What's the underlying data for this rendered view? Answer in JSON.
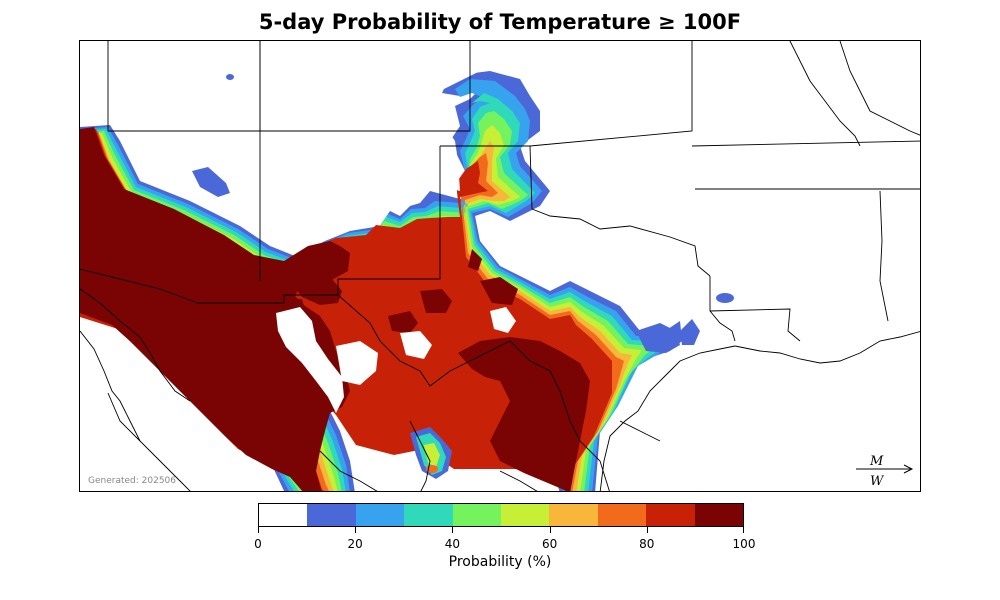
{
  "title": "5-day Probability of Temperature ≥ 100F",
  "generated_text": "Generated: 202506",
  "colorbar": {
    "label": "Probability (%)",
    "ticks": [
      "0",
      "20",
      "40",
      "60",
      "80",
      "100"
    ],
    "bins": [
      {
        "range": "0-10",
        "color": "#ffffff"
      },
      {
        "range": "10-20",
        "color": "#4a68d8"
      },
      {
        "range": "20-30",
        "color": "#37a3ee"
      },
      {
        "range": "30-40",
        "color": "#2fd9b9"
      },
      {
        "range": "40-50",
        "color": "#74f35e"
      },
      {
        "range": "50-60",
        "color": "#c7ef36"
      },
      {
        "range": "60-70",
        "color": "#f8b63a"
      },
      {
        "range": "70-80",
        "color": "#f26b1c"
      },
      {
        "range": "80-90",
        "color": "#c72208"
      },
      {
        "range": "90-100",
        "color": "#7a0403"
      }
    ]
  },
  "logo_text": [
    "M",
    "W"
  ]
}
